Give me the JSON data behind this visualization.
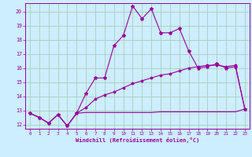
{
  "xlabel": "Windchill (Refroidissement éolien,°C)",
  "bg_color": "#cceeff",
  "grid_color": "#aaccbb",
  "line_color": "#990099",
  "xlim": [
    -0.5,
    23.5
  ],
  "ylim": [
    11.7,
    20.6
  ],
  "yticks": [
    12,
    13,
    14,
    15,
    16,
    17,
    18,
    19,
    20
  ],
  "xticks": [
    0,
    1,
    2,
    3,
    4,
    5,
    6,
    7,
    8,
    9,
    10,
    11,
    12,
    13,
    14,
    15,
    16,
    17,
    18,
    19,
    20,
    21,
    22,
    23
  ],
  "series1_x": [
    0,
    1,
    2,
    3,
    4,
    5,
    6,
    7,
    8,
    9,
    10,
    11,
    12,
    13,
    14,
    15,
    16,
    17,
    18,
    19,
    20,
    21,
    22,
    23
  ],
  "series1_y": [
    12.8,
    12.5,
    12.1,
    12.7,
    11.9,
    12.8,
    14.2,
    15.3,
    15.3,
    17.6,
    18.3,
    20.4,
    19.5,
    20.2,
    18.5,
    18.5,
    18.8,
    17.2,
    16.0,
    16.1,
    16.3,
    16.0,
    16.1,
    13.1
  ],
  "series2_x": [
    0,
    1,
    2,
    3,
    4,
    5,
    6,
    7,
    8,
    9,
    10,
    11,
    12,
    13,
    14,
    15,
    16,
    17,
    18,
    19,
    20,
    21,
    22,
    23
  ],
  "series2_y": [
    12.8,
    12.5,
    12.1,
    12.7,
    11.9,
    12.8,
    13.2,
    13.8,
    14.1,
    14.3,
    14.6,
    14.9,
    15.1,
    15.3,
    15.5,
    15.6,
    15.8,
    16.0,
    16.1,
    16.2,
    16.2,
    16.1,
    16.2,
    13.1
  ],
  "series3_x": [
    0,
    1,
    2,
    3,
    4,
    5,
    6,
    7,
    8,
    9,
    10,
    11,
    12,
    13,
    14,
    15,
    16,
    17,
    18,
    19,
    20,
    21,
    22,
    23
  ],
  "series3_y": [
    12.8,
    12.5,
    12.1,
    12.7,
    11.9,
    12.8,
    12.85,
    12.85,
    12.85,
    12.85,
    12.85,
    12.85,
    12.85,
    12.85,
    12.9,
    12.9,
    12.9,
    12.9,
    12.9,
    12.9,
    12.9,
    12.9,
    12.9,
    13.1
  ]
}
